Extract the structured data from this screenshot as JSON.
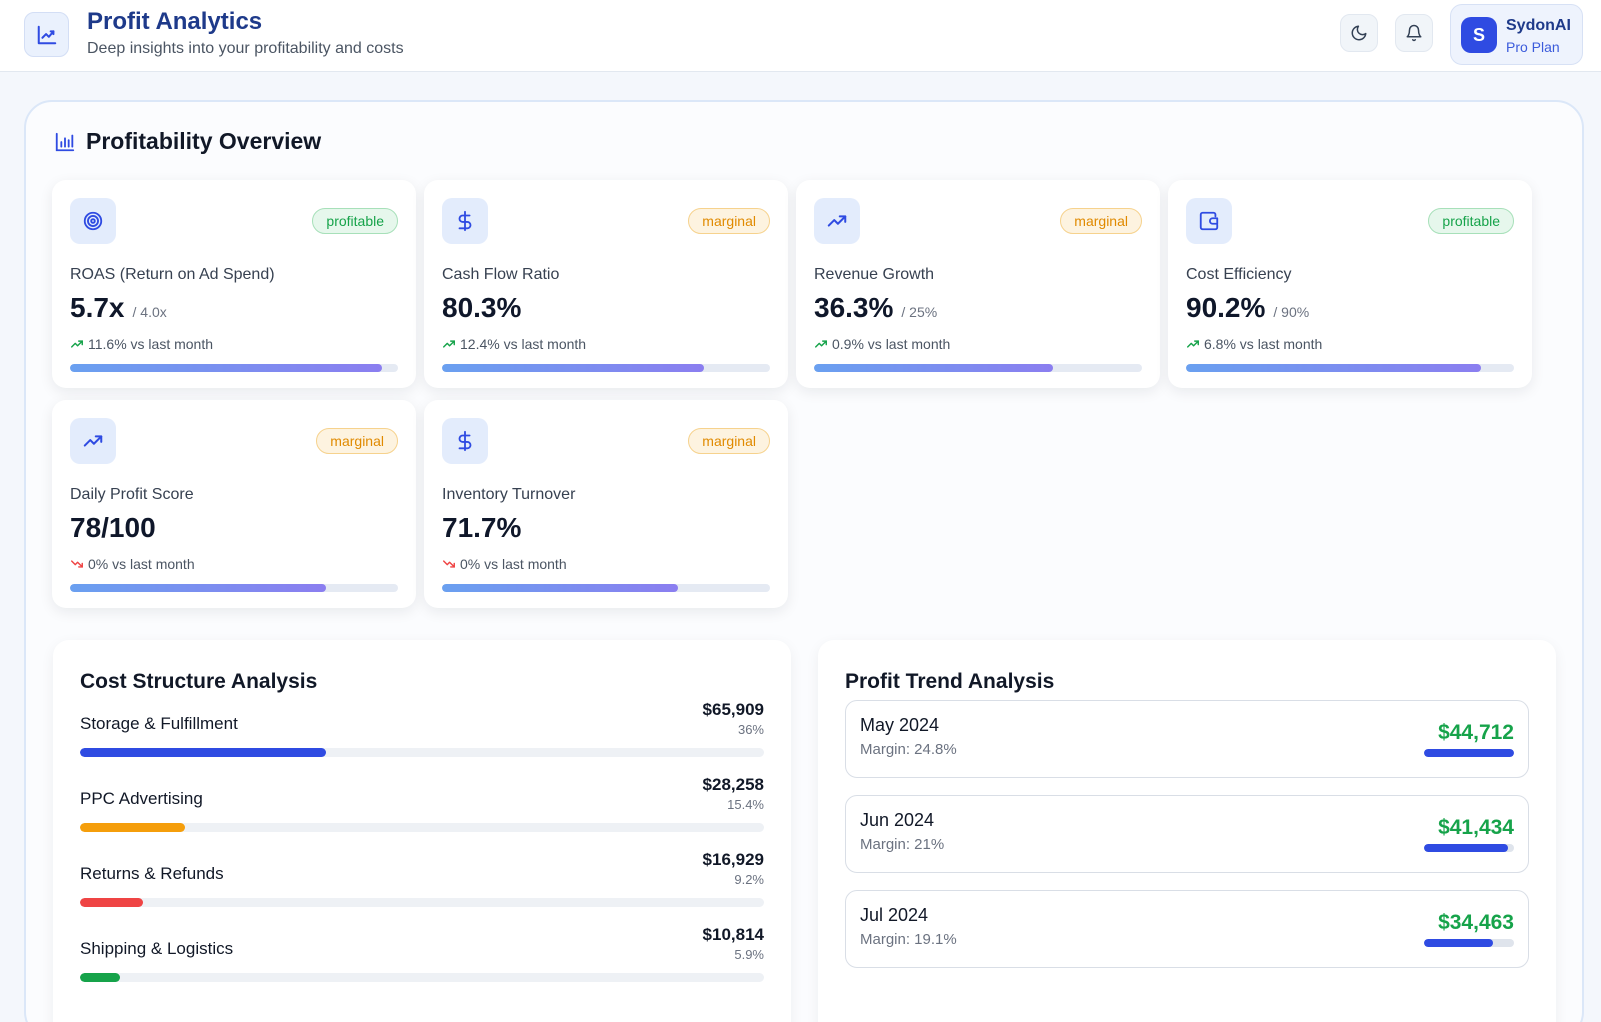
{
  "header": {
    "title": "Profit Analytics",
    "subtitle": "Deep insights into your profitability and costs",
    "user": {
      "initial": "S",
      "name": "SydonAI",
      "plan": "Pro Plan"
    }
  },
  "overview": {
    "title": "Profitability Overview",
    "cards": [
      {
        "label": "ROAS (Return on Ad Spend)",
        "value": "5.7x",
        "target": "/ 4.0x",
        "change": "11.6% vs last month",
        "trend": "up",
        "status": "profitable",
        "progress": 0.95,
        "icon": "target-icon"
      },
      {
        "label": "Cash Flow Ratio",
        "value": "80.3%",
        "target": "",
        "change": "12.4% vs last month",
        "trend": "up",
        "status": "marginal",
        "progress": 0.8,
        "icon": "dollar-icon"
      },
      {
        "label": "Revenue Growth",
        "value": "36.3%",
        "target": "/ 25%",
        "change": "0.9% vs last month",
        "trend": "up",
        "status": "marginal",
        "progress": 0.73,
        "icon": "trending-up-icon"
      },
      {
        "label": "Cost Efficiency",
        "value": "90.2%",
        "target": "/ 90%",
        "change": "6.8% vs last month",
        "trend": "up",
        "status": "profitable",
        "progress": 0.9,
        "icon": "wallet-icon"
      },
      {
        "label": "Daily Profit Score",
        "value": "78/100",
        "target": "",
        "change": "0% vs last month",
        "trend": "down",
        "status": "marginal",
        "progress": 0.78,
        "icon": "trending-up-icon"
      },
      {
        "label": "Inventory Turnover",
        "value": "71.7%",
        "target": "",
        "change": "0% vs last month",
        "trend": "down",
        "status": "marginal",
        "progress": 0.72,
        "icon": "dollar-icon"
      }
    ]
  },
  "cost_structure": {
    "title": "Cost Structure Analysis",
    "items": [
      {
        "name": "Storage & Fulfillment",
        "amount": "$65,909",
        "percent": "36%",
        "share": 0.36,
        "color": "#2f4be2"
      },
      {
        "name": "PPC Advertising",
        "amount": "$28,258",
        "percent": "15.4%",
        "share": 0.154,
        "color": "#f59e0b"
      },
      {
        "name": "Returns & Refunds",
        "amount": "$16,929",
        "percent": "9.2%",
        "share": 0.092,
        "color": "#ef4444"
      },
      {
        "name": "Shipping & Logistics",
        "amount": "$10,814",
        "percent": "5.9%",
        "share": 0.059,
        "color": "#16a34a"
      }
    ]
  },
  "profit_trend": {
    "title": "Profit Trend Analysis",
    "items": [
      {
        "month": "May 2024",
        "margin": "Margin: 24.8%",
        "profit": "$44,712",
        "ratio": 1.0
      },
      {
        "month": "Jun 2024",
        "margin": "Margin: 21%",
        "profit": "$41,434",
        "ratio": 0.93
      },
      {
        "month": "Jul 2024",
        "margin": "Margin: 19.1%",
        "profit": "$34,463",
        "ratio": 0.77
      }
    ]
  }
}
